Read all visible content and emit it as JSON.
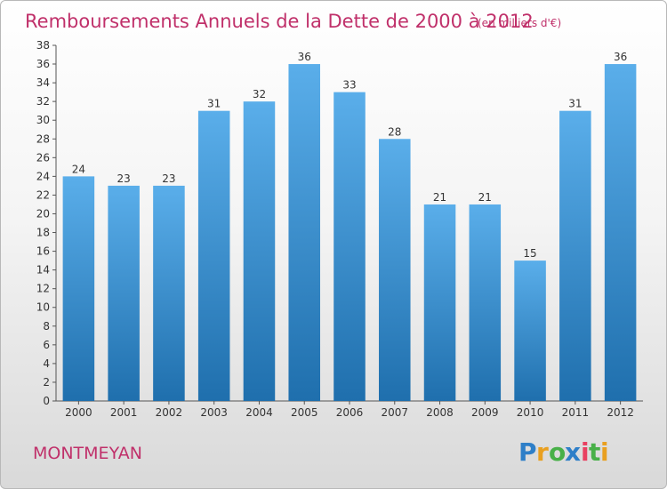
{
  "chart_data": {
    "type": "bar",
    "title": "Remboursements Annuels de la Dette de 2000 à 2012",
    "subtitle": "(en milliers d'€)",
    "categories": [
      "2000",
      "2001",
      "2002",
      "2003",
      "2004",
      "2005",
      "2006",
      "2007",
      "2008",
      "2009",
      "2010",
      "2011",
      "2012"
    ],
    "values": [
      24,
      23,
      23,
      31,
      32,
      36,
      33,
      28,
      21,
      21,
      15,
      31,
      36
    ],
    "ylim": [
      0,
      38
    ],
    "yticks": [
      0,
      2,
      4,
      6,
      8,
      10,
      12,
      14,
      16,
      18,
      20,
      22,
      24,
      26,
      28,
      30,
      32,
      34,
      36,
      38
    ],
    "grid": false,
    "colors": {
      "bar_top": "#5aaeea",
      "bar_bottom": "#1f6fad",
      "title": "#c0306a"
    }
  },
  "footer": {
    "commune": "MONTMEYAN",
    "brand": "Proxiti"
  }
}
